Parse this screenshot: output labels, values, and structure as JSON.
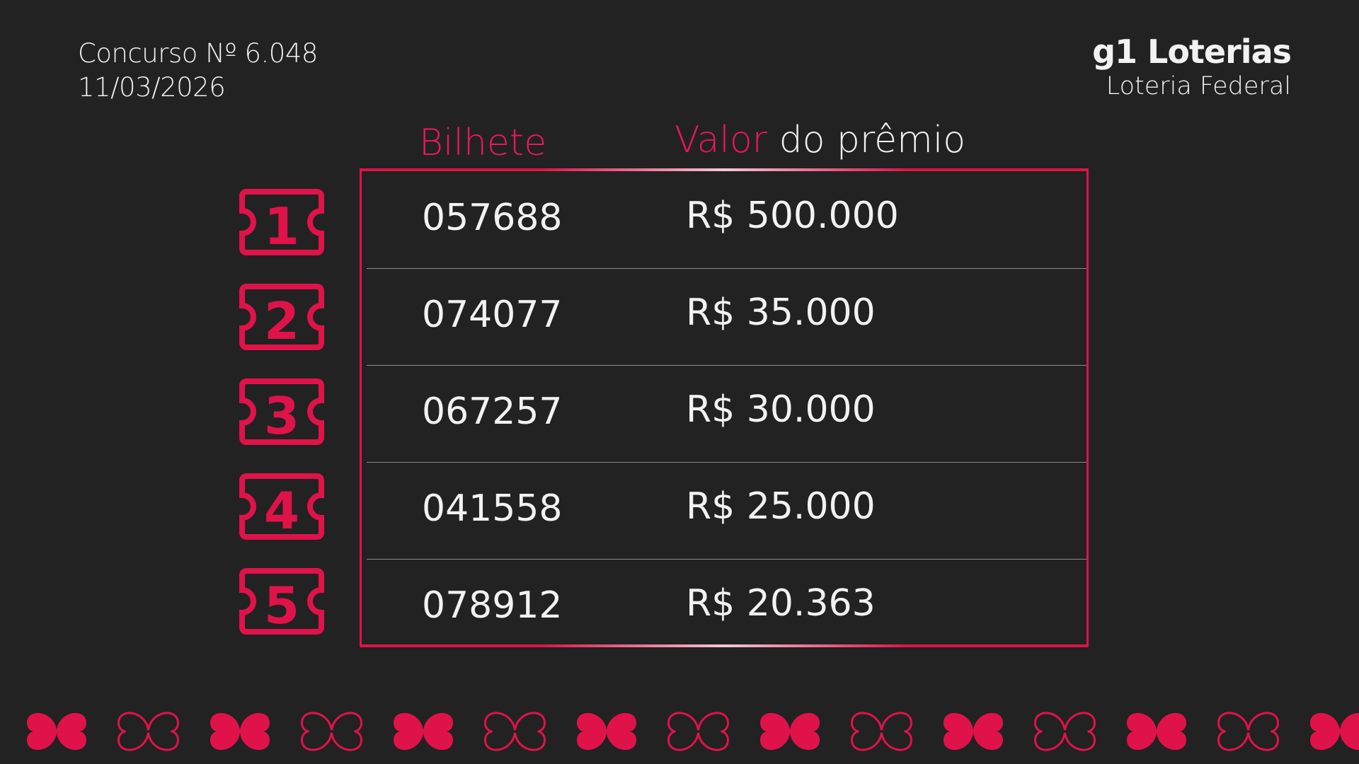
{
  "header": {
    "contest": "Concurso Nº 6.048",
    "date": "11/03/2026"
  },
  "brand": {
    "logo": "g1 Loterias",
    "subtitle": "Loteria Federal"
  },
  "columns": {
    "ticket": "Bilhete",
    "value_a": "Valor",
    "value_b": " do prêmio"
  },
  "prizes": [
    {
      "rank": "1",
      "ticket": "057688",
      "value": "R$ 500.000"
    },
    {
      "rank": "2",
      "ticket": "074077",
      "value": "R$ 35.000"
    },
    {
      "rank": "3",
      "ticket": "067257",
      "value": "R$ 30.000"
    },
    {
      "rank": "4",
      "ticket": "041558",
      "value": "R$ 25.000"
    },
    {
      "rank": "5",
      "ticket": "078912",
      "value": "R$ 20.363"
    }
  ],
  "colors": {
    "accent": "#e0124a",
    "background": "#222222"
  },
  "icons": {
    "rank": "ticket-icon",
    "decoration": "four-leaf-clover-icon"
  }
}
